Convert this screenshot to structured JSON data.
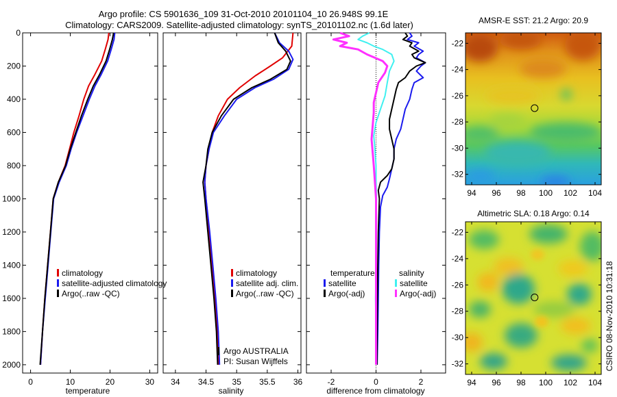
{
  "title": {
    "line1": "Argo profile: CS 5901636_109 31-Oct-2010 20101104_10 26.948S 99.1E",
    "line2": "Climatology: CARS2009. Satellite-adjusted climatology: synTS_20101102.nc (1.6d later)"
  },
  "colors": {
    "red": "#e00000",
    "blue": "#1a1aee",
    "black": "#000000",
    "cyan": "#40f0f0",
    "magenta": "#ff30ff"
  },
  "chart_data": [
    {
      "id": "temperature",
      "type": "line",
      "xlabel": "temperature",
      "xlim": [
        -2,
        32
      ],
      "ylim": [
        0,
        2050
      ],
      "y_reversed": true,
      "xticks": [
        0,
        10,
        20,
        30
      ],
      "yticks": [
        0,
        200,
        400,
        600,
        800,
        1000,
        1200,
        1400,
        1600,
        1800,
        2000
      ],
      "legend": [
        "climatology",
        "satellite-adjusted climatology",
        "Argo(..raw -QC)"
      ],
      "series": [
        {
          "name": "climatology",
          "color": "red",
          "width": 2,
          "points": [
            [
              19.7,
              0
            ],
            [
              19.5,
              40
            ],
            [
              18.8,
              100
            ],
            [
              17.9,
              170
            ],
            [
              16.2,
              250
            ],
            [
              14.6,
              320
            ],
            [
              13.4,
              400
            ],
            [
              12.2,
              500
            ],
            [
              10.9,
              600
            ],
            [
              9.8,
              700
            ],
            [
              8.7,
              800
            ],
            [
              7.0,
              900
            ],
            [
              5.7,
              1000
            ],
            [
              5.0,
              1200
            ],
            [
              4.3,
              1400
            ],
            [
              3.6,
              1600
            ],
            [
              3.0,
              1800
            ],
            [
              2.5,
              2000
            ]
          ]
        },
        {
          "name": "satellite-adjusted climatology",
          "color": "blue",
          "width": 2,
          "points": [
            [
              21.2,
              0
            ],
            [
              21.0,
              40
            ],
            [
              20.3,
              100
            ],
            [
              19.4,
              170
            ],
            [
              17.8,
              250
            ],
            [
              16.2,
              320
            ],
            [
              14.8,
              400
            ],
            [
              13.2,
              500
            ],
            [
              11.6,
              600
            ],
            [
              10.2,
              700
            ],
            [
              9.0,
              800
            ],
            [
              7.2,
              900
            ],
            [
              5.8,
              1000
            ],
            [
              5.1,
              1200
            ],
            [
              4.4,
              1400
            ],
            [
              3.7,
              1600
            ],
            [
              3.0,
              1800
            ],
            [
              2.5,
              2000
            ]
          ]
        },
        {
          "name": "Argo(..raw -QC)",
          "color": "black",
          "width": 2,
          "points": [
            [
              20.9,
              0
            ],
            [
              20.6,
              40
            ],
            [
              19.9,
              100
            ],
            [
              19.0,
              170
            ],
            [
              17.4,
              250
            ],
            [
              15.8,
              320
            ],
            [
              14.4,
              400
            ],
            [
              12.8,
              500
            ],
            [
              11.4,
              600
            ],
            [
              10.0,
              700
            ],
            [
              8.8,
              800
            ],
            [
              7.0,
              900
            ],
            [
              5.7,
              1000
            ],
            [
              5.0,
              1200
            ],
            [
              4.3,
              1400
            ],
            [
              3.6,
              1600
            ],
            [
              3.0,
              1800
            ],
            [
              2.4,
              2000
            ]
          ]
        }
      ]
    },
    {
      "id": "salinity",
      "type": "line",
      "xlabel": "salinity",
      "xlim": [
        33.8,
        36.05
      ],
      "ylim": [
        0,
        2050
      ],
      "y_reversed": true,
      "xticks": [
        34,
        34.5,
        35,
        35.5,
        36
      ],
      "legend": [
        "climatology",
        "satellite adj. clim.",
        "Argo(..raw -QC)"
      ],
      "annotation": [
        "Argo AUSTRALIA",
        "PI: Susan Wijffels"
      ],
      "series": [
        {
          "name": "climatology",
          "color": "red",
          "width": 2,
          "points": [
            [
              35.92,
              0
            ],
            [
              35.9,
              80
            ],
            [
              35.75,
              150
            ],
            [
              35.55,
              200
            ],
            [
              35.3,
              260
            ],
            [
              35.05,
              330
            ],
            [
              34.85,
              400
            ],
            [
              34.7,
              500
            ],
            [
              34.6,
              600
            ],
            [
              34.55,
              700
            ],
            [
              34.5,
              800
            ],
            [
              34.48,
              900
            ],
            [
              34.5,
              1000
            ],
            [
              34.55,
              1200
            ],
            [
              34.6,
              1400
            ],
            [
              34.65,
              1600
            ],
            [
              34.68,
              1800
            ],
            [
              34.7,
              2000
            ]
          ]
        },
        {
          "name": "satellite adj. clim.",
          "color": "blue",
          "width": 2,
          "points": [
            [
              35.62,
              0
            ],
            [
              35.7,
              60
            ],
            [
              35.85,
              110
            ],
            [
              35.92,
              160
            ],
            [
              35.85,
              220
            ],
            [
              35.6,
              280
            ],
            [
              35.3,
              330
            ],
            [
              35.0,
              400
            ],
            [
              34.8,
              500
            ],
            [
              34.62,
              600
            ],
            [
              34.55,
              700
            ],
            [
              34.5,
              800
            ],
            [
              34.48,
              900
            ],
            [
              34.5,
              1000
            ],
            [
              34.56,
              1200
            ],
            [
              34.61,
              1400
            ],
            [
              34.66,
              1600
            ],
            [
              34.7,
              1800
            ],
            [
              34.72,
              2000
            ]
          ]
        },
        {
          "name": "Argo(..raw -QC)",
          "color": "black",
          "width": 2,
          "points": [
            [
              35.62,
              0
            ],
            [
              35.68,
              60
            ],
            [
              35.8,
              110
            ],
            [
              35.88,
              170
            ],
            [
              35.82,
              220
            ],
            [
              35.55,
              280
            ],
            [
              35.25,
              330
            ],
            [
              34.95,
              400
            ],
            [
              34.75,
              500
            ],
            [
              34.6,
              600
            ],
            [
              34.53,
              700
            ],
            [
              34.5,
              800
            ],
            [
              34.45,
              900
            ],
            [
              34.48,
              1000
            ],
            [
              34.53,
              1200
            ],
            [
              34.58,
              1400
            ],
            [
              34.63,
              1600
            ],
            [
              34.67,
              1800
            ],
            [
              34.69,
              2000
            ]
          ]
        }
      ]
    },
    {
      "id": "difference",
      "type": "line",
      "xlabel": "difference from climatology",
      "xlim": [
        -3.1,
        3.1
      ],
      "ylim": [
        0,
        2050
      ],
      "y_reversed": true,
      "xticks": [
        -2,
        0,
        2
      ],
      "zero_line": true,
      "legend_headers": [
        "temperature",
        "salinity"
      ],
      "legend": [
        {
          "label": "satellite",
          "color": "blue"
        },
        {
          "label": "Argo(-adj)",
          "color": "black"
        },
        {
          "label": "satellite",
          "color": "cyan"
        },
        {
          "label": "Argo(-adj)",
          "color": "magenta"
        }
      ],
      "series": [
        {
          "name": "temperature satellite",
          "color": "blue",
          "width": 2,
          "points": [
            [
              1.5,
              0
            ],
            [
              1.6,
              20
            ],
            [
              1.4,
              40
            ],
            [
              1.9,
              60
            ],
            [
              1.7,
              80
            ],
            [
              2.1,
              110
            ],
            [
              1.9,
              130
            ],
            [
              1.8,
              150
            ],
            [
              2.2,
              180
            ],
            [
              2.0,
              200
            ],
            [
              1.8,
              230
            ],
            [
              2.1,
              270
            ],
            [
              1.7,
              300
            ],
            [
              1.6,
              340
            ],
            [
              1.5,
              400
            ],
            [
              1.3,
              460
            ],
            [
              1.2,
              520
            ],
            [
              1.1,
              580
            ],
            [
              0.9,
              640
            ],
            [
              0.8,
              700
            ],
            [
              0.8,
              760
            ],
            [
              0.7,
              820
            ],
            [
              0.6,
              880
            ],
            [
              0.5,
              930
            ],
            [
              0.3,
              980
            ],
            [
              0.2,
              1050
            ],
            [
              0.15,
              1200
            ],
            [
              0.12,
              1400
            ],
            [
              0.1,
              1600
            ],
            [
              0.08,
              1800
            ],
            [
              0.05,
              2000
            ]
          ]
        },
        {
          "name": "temperature Argo(-adj)",
          "color": "black",
          "width": 2,
          "points": [
            [
              1.3,
              0
            ],
            [
              1.4,
              20
            ],
            [
              1.2,
              40
            ],
            [
              1.6,
              60
            ],
            [
              1.5,
              80
            ],
            [
              1.9,
              110
            ],
            [
              1.6,
              130
            ],
            [
              1.7,
              150
            ],
            [
              2.2,
              180
            ],
            [
              1.8,
              200
            ],
            [
              1.5,
              230
            ],
            [
              1.3,
              270
            ],
            [
              1.0,
              300
            ],
            [
              0.9,
              340
            ],
            [
              0.8,
              400
            ],
            [
              0.7,
              460
            ],
            [
              0.6,
              520
            ],
            [
              0.6,
              580
            ],
            [
              0.7,
              640
            ],
            [
              0.8,
              700
            ],
            [
              0.8,
              760
            ],
            [
              0.7,
              820
            ],
            [
              0.5,
              860
            ],
            [
              0.2,
              900
            ],
            [
              0.1,
              950
            ],
            [
              0.15,
              1000
            ],
            [
              0.1,
              1200
            ],
            [
              0.08,
              1400
            ],
            [
              0.06,
              1600
            ],
            [
              0.05,
              1800
            ],
            [
              0.04,
              2000
            ]
          ]
        },
        {
          "name": "salinity satellite",
          "color": "cyan",
          "width": 2,
          "points": [
            [
              -0.3,
              0
            ],
            [
              -0.6,
              20
            ],
            [
              -0.8,
              40
            ],
            [
              -0.4,
              60
            ],
            [
              -0.1,
              80
            ],
            [
              0.3,
              100
            ],
            [
              0.7,
              130
            ],
            [
              0.8,
              170
            ],
            [
              0.6,
              230
            ],
            [
              0.5,
              300
            ],
            [
              0.4,
              380
            ],
            [
              0.2,
              460
            ],
            [
              0.0,
              540
            ],
            [
              -0.1,
              620
            ],
            [
              -0.05,
              700
            ],
            [
              0.0,
              800
            ],
            [
              0.0,
              900
            ],
            [
              0.02,
              1000
            ],
            [
              0.0,
              1200
            ],
            [
              0.0,
              1400
            ],
            [
              -0.02,
              1600
            ],
            [
              0.0,
              1800
            ],
            [
              0.0,
              2000
            ]
          ]
        },
        {
          "name": "salinity Argo(-adj)",
          "color": "magenta",
          "width": 3,
          "points": [
            [
              -1.6,
              0
            ],
            [
              -1.2,
              20
            ],
            [
              -1.9,
              40
            ],
            [
              -1.3,
              60
            ],
            [
              -1.6,
              80
            ],
            [
              -0.8,
              100
            ],
            [
              -0.4,
              130
            ],
            [
              0.3,
              170
            ],
            [
              0.5,
              200
            ],
            [
              0.4,
              240
            ],
            [
              0.1,
              300
            ],
            [
              0.0,
              360
            ],
            [
              -0.1,
              420
            ],
            [
              -0.1,
              480
            ],
            [
              -0.15,
              560
            ],
            [
              -0.2,
              640
            ],
            [
              -0.15,
              720
            ],
            [
              -0.1,
              800
            ],
            [
              -0.05,
              900
            ],
            [
              0.0,
              1000
            ],
            [
              0.0,
              1200
            ],
            [
              0.0,
              1400
            ],
            [
              0.0,
              1600
            ],
            [
              0.0,
              1800
            ],
            [
              0.0,
              2000
            ]
          ]
        }
      ]
    },
    {
      "id": "sst_map",
      "type": "heatmap",
      "title": "AMSR-E SST: 21.2 Argo: 20.9",
      "xlim": [
        93.5,
        104.5
      ],
      "ylim": [
        -32.8,
        -21.2
      ],
      "xticks": [
        94,
        96,
        98,
        100,
        102,
        104
      ],
      "yticks": [
        -22,
        -24,
        -26,
        -28,
        -30,
        -32
      ],
      "marker": [
        99.1,
        -26.948
      ]
    },
    {
      "id": "sla_map",
      "type": "heatmap",
      "title": "Altimetric SLA: 0.18 Argo: 0.14",
      "xlim": [
        93.5,
        104.5
      ],
      "ylim": [
        -32.8,
        -21.2
      ],
      "xticks": [
        94,
        96,
        98,
        100,
        102,
        104
      ],
      "yticks": [
        -22,
        -24,
        -26,
        -28,
        -30,
        -32
      ],
      "marker": [
        99.1,
        -26.948
      ]
    }
  ],
  "credit": "CSIRO 08-Nov-2010 10:31:18"
}
